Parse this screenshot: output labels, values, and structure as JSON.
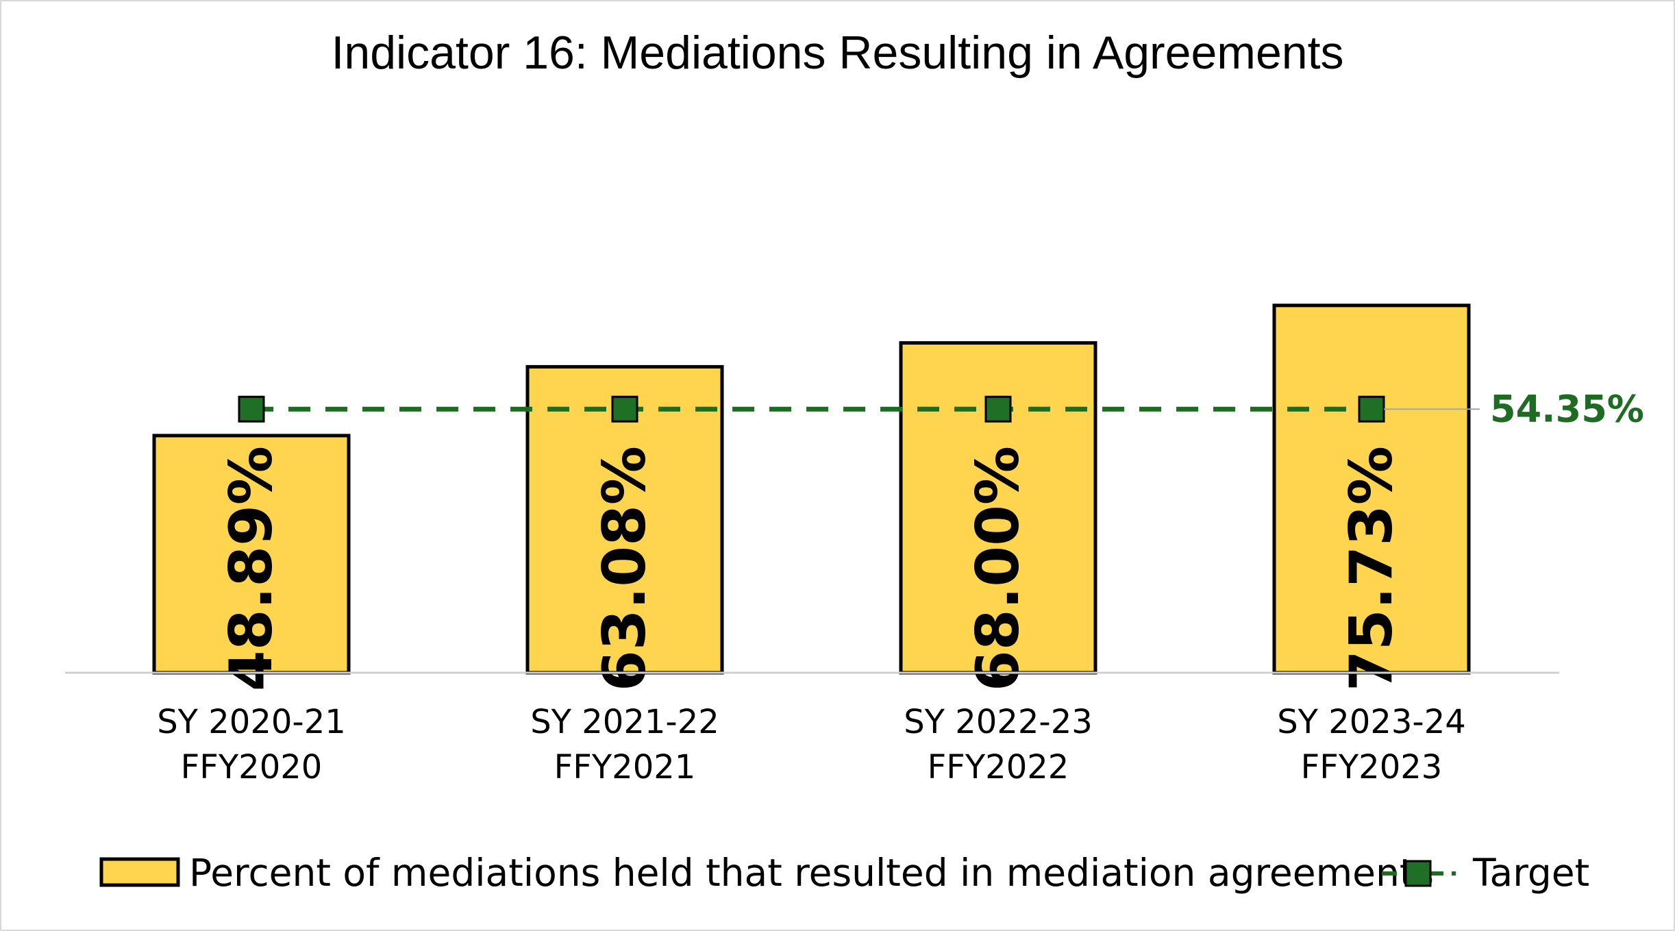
{
  "chart_data": {
    "type": "bar",
    "title": "Indicator 16: Mediations Resulting in Agreements",
    "categories": [
      [
        "SY 2020-21",
        "FFY2020"
      ],
      [
        "SY 2021-22",
        "FFY2021"
      ],
      [
        "SY 2022-23",
        "FFY2022"
      ],
      [
        "SY 2023-24",
        "FFY2023"
      ]
    ],
    "series": [
      {
        "name": "Percent of mediations held that resulted in mediation agreements",
        "type": "bar",
        "values": [
          48.89,
          63.08,
          68.0,
          75.73
        ],
        "labels": [
          "48.89%",
          "63.08%",
          "68.00%",
          "75.73%"
        ],
        "color": "#ffd54f"
      },
      {
        "name": "Target",
        "type": "line",
        "style": "dashed",
        "values": [
          54.35,
          54.35,
          54.35,
          54.35
        ],
        "end_label": "54.35%",
        "color": "#1e6b22",
        "marker_color": "#1f6f26"
      }
    ],
    "ylim": [
      0,
      80
    ],
    "grid": false,
    "legend_position": "bottom"
  }
}
